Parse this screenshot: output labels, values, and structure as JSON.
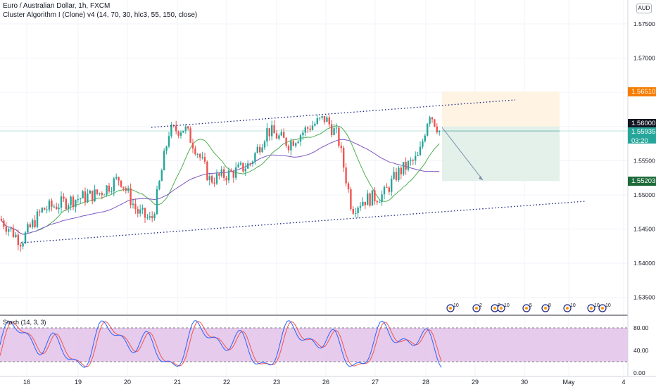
{
  "header": {
    "symbol_line": "Euro / Australian Dollar, 1h, FXCM",
    "indicator_line": "Cluster Algorithm I (Clone) v4 (14, 70, 30, hlc3, 55, 150, close)"
  },
  "currency_badge": "AUD",
  "price_axis": {
    "ticks": [
      "1.57500",
      "1.57000",
      "1.56500",
      "1.56000",
      "1.55500",
      "1.55000",
      "1.54500",
      "1.54000",
      "1.53500"
    ],
    "tick_values": [
      1.575,
      1.57,
      1.565,
      1.56,
      1.555,
      1.55,
      1.545,
      1.54,
      1.535
    ],
    "range": [
      1.5325,
      1.5785
    ]
  },
  "price_labels": {
    "target": {
      "text": "1.56510",
      "value": 1.5651,
      "bg": "#f57c00",
      "fg": "#ffffff"
    },
    "high": {
      "text": "1.56000",
      "value": 1.56,
      "bg": "#131722",
      "fg": "#ffffff"
    },
    "last": {
      "text": "1.55935",
      "value": 1.55935,
      "countdown": "03:20",
      "bg": "#26a69a",
      "fg": "#ffffff"
    },
    "stop": {
      "text": "1.55203",
      "value": 1.55203,
      "bg": "#1e6b3a",
      "fg": "#ffffff"
    }
  },
  "time_axis": {
    "labels": [
      "16",
      "19",
      "20",
      "21",
      "22",
      "23",
      "26",
      "27",
      "28",
      "29",
      "30",
      "May",
      "4"
    ]
  },
  "stoch": {
    "label": "Stoch (14, 3, 3)",
    "ticks": [
      "80.00",
      "40.00",
      "0.00"
    ],
    "tick_values": [
      80,
      40,
      0
    ],
    "upper": 80,
    "lower": 20
  },
  "events": {
    "labels": [
      "10",
      "2",
      "8",
      "10",
      "5",
      "8",
      "10",
      "10",
      "10"
    ]
  },
  "colors": {
    "up": "#26a69a",
    "down": "#ef5350",
    "ma_fast": "#4caf50",
    "ma_slow": "#7e57c2",
    "channel": "#1a237e",
    "stoch_k": "#2962ff",
    "stoch_d": "#ef5350",
    "stoch_bg": "#e1bee7"
  }
}
